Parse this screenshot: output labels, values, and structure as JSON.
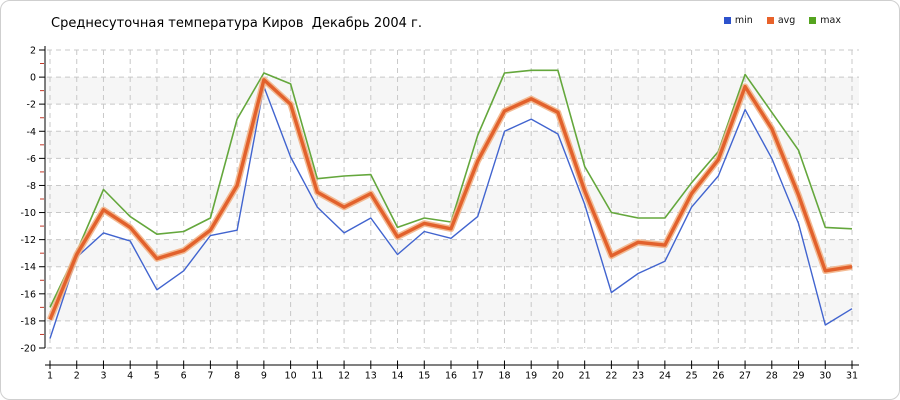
{
  "title": "Среднесуточная температура Киров  Декабрь 2004 г.",
  "legend": [
    {
      "label": "min",
      "color": "#2d52cc"
    },
    {
      "label": "avg",
      "color": "#e8622a"
    },
    {
      "label": "max",
      "color": "#55a41f"
    }
  ],
  "chart_data": {
    "type": "line",
    "title": "Среднесуточная температура Киров  Декабрь 2004 г.",
    "xlabel": "",
    "ylabel": "",
    "x": [
      1,
      2,
      3,
      4,
      5,
      6,
      7,
      8,
      9,
      10,
      11,
      12,
      13,
      14,
      15,
      16,
      17,
      18,
      19,
      20,
      21,
      22,
      23,
      24,
      25,
      26,
      27,
      28,
      29,
      30,
      31
    ],
    "series": [
      {
        "name": "min",
        "color": "#4164cf",
        "width": 1.4,
        "values": [
          -19.3,
          -13.3,
          -11.5,
          -12.1,
          -15.7,
          -14.3,
          -11.7,
          -11.3,
          -0.7,
          -5.9,
          -9.6,
          -11.5,
          -10.4,
          -13.1,
          -11.4,
          -11.9,
          -10.3,
          -4.0,
          -3.1,
          -4.2,
          -9.4,
          -15.9,
          -14.5,
          -13.6,
          -9.6,
          -7.3,
          -2.4,
          -6.0,
          -10.8,
          -18.3,
          -17.1
        ]
      },
      {
        "name": "avg",
        "color": "#e2612c",
        "halo": "#f2b488",
        "width": 3.4,
        "values": [
          -17.9,
          -13.1,
          -9.8,
          -11.1,
          -13.4,
          -12.8,
          -11.3,
          -8.0,
          -0.2,
          -2.0,
          -8.5,
          -9.6,
          -8.6,
          -11.8,
          -10.8,
          -11.2,
          -6.2,
          -2.5,
          -1.6,
          -2.6,
          -8.4,
          -13.2,
          -12.2,
          -12.4,
          -8.6,
          -6.1,
          -0.7,
          -3.8,
          -8.7,
          -14.3,
          -14.0
        ]
      },
      {
        "name": "max",
        "color": "#64a73c",
        "width": 1.6,
        "values": [
          -17.0,
          -12.9,
          -8.3,
          -10.3,
          -11.6,
          -11.4,
          -10.4,
          -3.1,
          0.3,
          -0.5,
          -7.5,
          -7.3,
          -7.2,
          -11.1,
          -10.4,
          -10.7,
          -4.3,
          0.3,
          0.5,
          0.5,
          -6.6,
          -10.0,
          -10.4,
          -10.4,
          -7.8,
          -5.5,
          0.2,
          -2.6,
          -5.4,
          -11.1,
          -11.2
        ]
      }
    ],
    "ylim": [
      -20,
      2
    ],
    "ytick_step": 2,
    "y_minor_tick_color": "#c23a2a",
    "grid": true,
    "grid_color": "#c8c8c8",
    "band_color": "#f6f6f6",
    "axis_color": "#000000",
    "legend_position": "top-right"
  }
}
